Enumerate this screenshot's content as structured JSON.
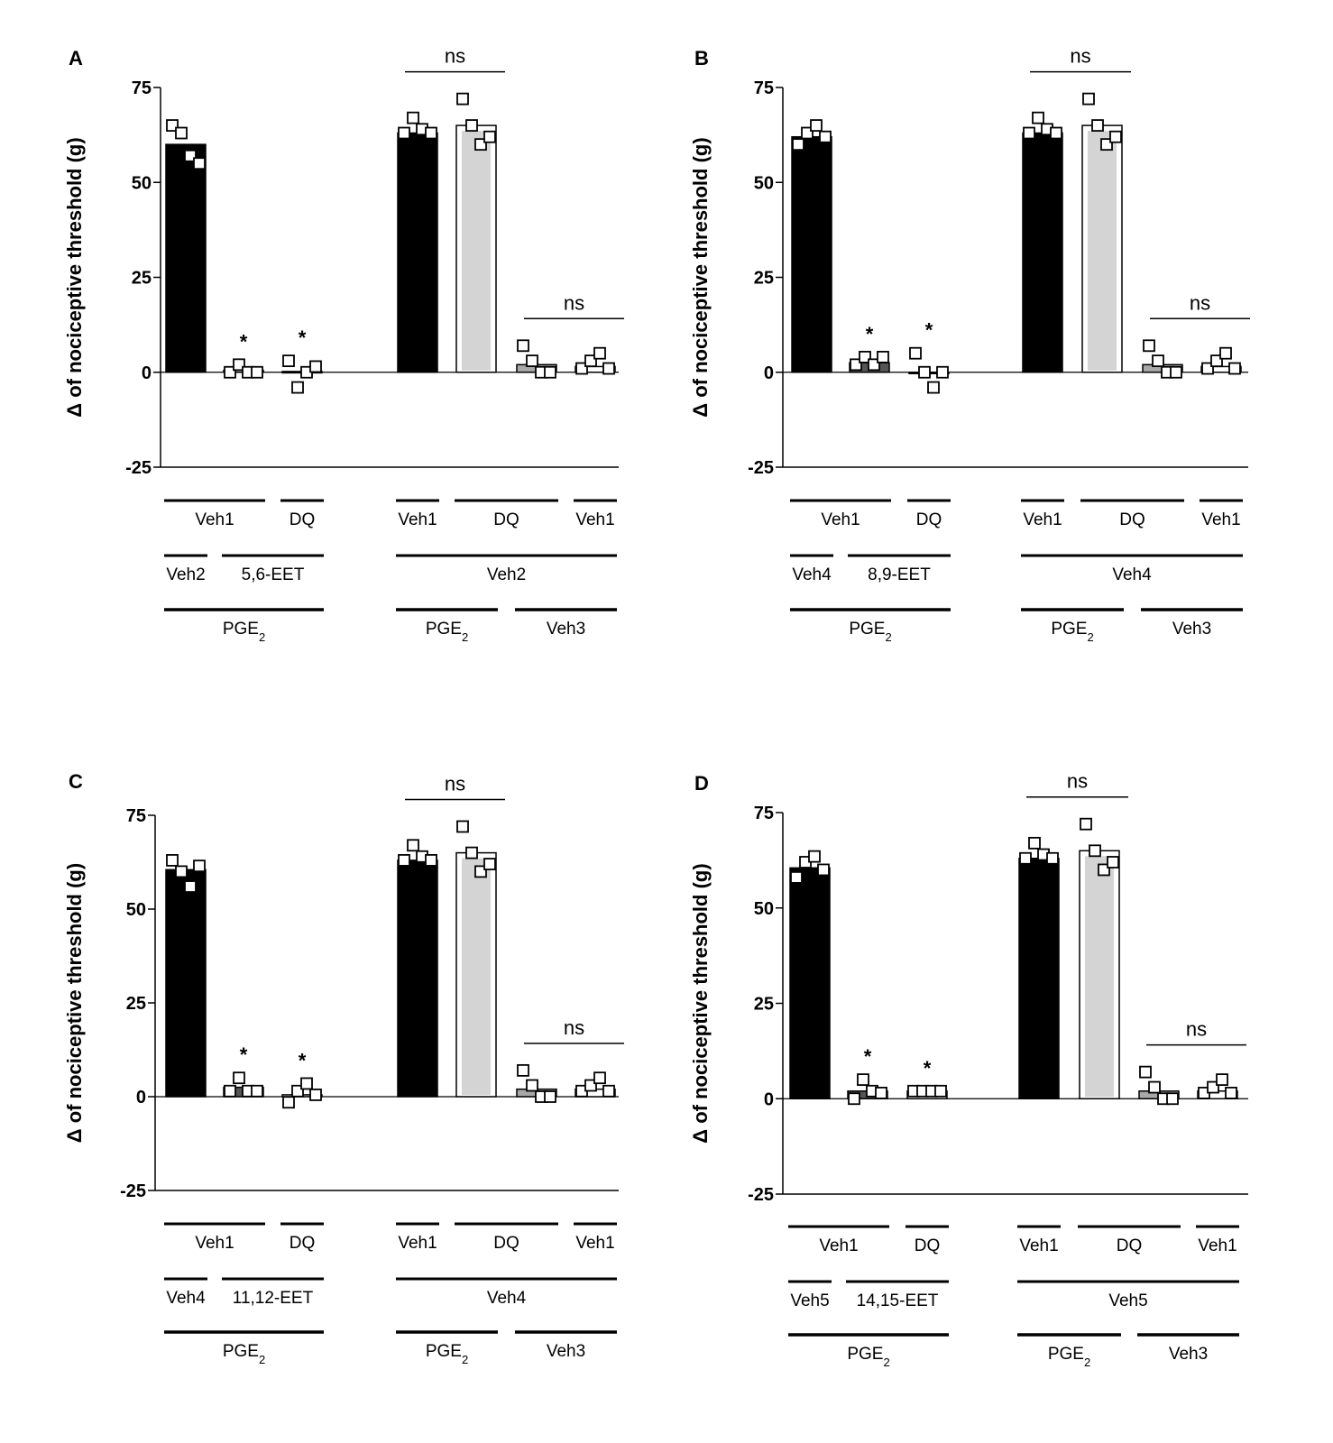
{
  "figure": {
    "ylabel": "Δ of nociceptive threshold (g)",
    "colors": {
      "black": "#000000",
      "light_gray": "#d4d4d4",
      "mid_gray": "#a8a8a8",
      "dark_gray": "#555555",
      "white": "#ffffff"
    }
  },
  "chart_data": [
    {
      "panel": "A",
      "type": "bar",
      "title": "",
      "ylabel": "Δ of nociceptive threshold (g)",
      "ylim": [
        -25,
        75
      ],
      "yticks": [
        75,
        50,
        25,
        0,
        -25
      ],
      "categories": [
        "PGE2+Veh2+Veh1",
        "PGE2+5,6-EET+Veh1",
        "PGE2+5,6-EET+DQ",
        "PGE2+Veh2+Veh1",
        "PGE2+Veh2+DQ",
        "Veh3+Veh2+DQ",
        "Veh3+Veh2+Veh1"
      ],
      "values": [
        60,
        0.5,
        0.2,
        63,
        65,
        2,
        1.5
      ],
      "fills": [
        "black",
        "white",
        "white",
        "black",
        "light_gray",
        "mid_gray",
        "white"
      ],
      "points": [
        [
          65,
          63,
          57,
          55
        ],
        [
          0,
          2,
          0,
          0
        ],
        [
          3,
          -4,
          0,
          1.5
        ],
        [
          63,
          67,
          64,
          63
        ],
        [
          72,
          65,
          60,
          62
        ],
        [
          7,
          3,
          0,
          0
        ],
        [
          1,
          3,
          5,
          1
        ]
      ],
      "annotations": {
        "stars": [
          1,
          2
        ],
        "ns_brackets": [
          {
            "from": 3,
            "to": 4,
            "label": "ns"
          },
          {
            "from": 5,
            "to": 6,
            "label": "ns"
          }
        ]
      },
      "group_rows": [
        [
          {
            "label": "Veh1",
            "from": 0,
            "to": 1
          },
          {
            "label": "DQ",
            "from": 2,
            "to": 2
          },
          {
            "label": "Veh1",
            "from": 3,
            "to": 3
          },
          {
            "label": "DQ",
            "from": 4,
            "to": 5
          },
          {
            "label": "Veh1",
            "from": 6,
            "to": 6
          }
        ],
        [
          {
            "label": "Veh2",
            "from": 0,
            "to": 0
          },
          {
            "label": "5,6-EET",
            "from": 1,
            "to": 2
          },
          {
            "label": "Veh2",
            "from": 3,
            "to": 6
          }
        ],
        [
          {
            "label": "PGE",
            "sub": "2",
            "from": 0,
            "to": 2
          },
          {
            "label": "PGE",
            "sub": "2",
            "from": 3,
            "to": 4
          },
          {
            "label": "Veh3",
            "from": 5,
            "to": 6
          }
        ]
      ]
    },
    {
      "panel": "B",
      "type": "bar",
      "title": "",
      "ylabel": "Δ of nociceptive threshold (g)",
      "ylim": [
        -25,
        75
      ],
      "yticks": [
        75,
        50,
        25,
        0,
        -25
      ],
      "categories": [
        "PGE2+Veh4+Veh1",
        "PGE2+8,9-EET+Veh1",
        "PGE2+8,9-EET+DQ",
        "PGE2+Veh4+Veh1",
        "PGE2+Veh4+DQ",
        "Veh3+Veh4+DQ",
        "Veh3+Veh4+Veh1"
      ],
      "values": [
        62,
        2.5,
        0,
        63,
        65,
        2,
        1.5
      ],
      "fills": [
        "black",
        "dark_gray",
        "white",
        "black",
        "light_gray",
        "mid_gray",
        "white"
      ],
      "points": [
        [
          60,
          63,
          65,
          62
        ],
        [
          2,
          4,
          2,
          4
        ],
        [
          5,
          0,
          -4,
          0
        ],
        [
          63,
          67,
          64,
          63
        ],
        [
          72,
          65,
          60,
          62
        ],
        [
          7,
          3,
          0,
          0
        ],
        [
          1,
          3,
          5,
          1
        ]
      ],
      "annotations": {
        "stars": [
          1,
          2
        ],
        "ns_brackets": [
          {
            "from": 3,
            "to": 4,
            "label": "ns"
          },
          {
            "from": 5,
            "to": 6,
            "label": "ns"
          }
        ]
      },
      "group_rows": [
        [
          {
            "label": "Veh1",
            "from": 0,
            "to": 1
          },
          {
            "label": "DQ",
            "from": 2,
            "to": 2
          },
          {
            "label": "Veh1",
            "from": 3,
            "to": 3
          },
          {
            "label": "DQ",
            "from": 4,
            "to": 5
          },
          {
            "label": "Veh1",
            "from": 6,
            "to": 6
          }
        ],
        [
          {
            "label": "Veh4",
            "from": 0,
            "to": 0
          },
          {
            "label": "8,9-EET",
            "from": 1,
            "to": 2
          },
          {
            "label": "Veh4",
            "from": 3,
            "to": 6
          }
        ],
        [
          {
            "label": "PGE",
            "sub": "2",
            "from": 0,
            "to": 2
          },
          {
            "label": "PGE",
            "sub": "2",
            "from": 3,
            "to": 4
          },
          {
            "label": "Veh3",
            "from": 5,
            "to": 6
          }
        ]
      ]
    },
    {
      "panel": "C",
      "type": "bar",
      "title": "",
      "ylabel": "Δ of nociceptive threshold (g)",
      "ylim": [
        -25,
        75
      ],
      "yticks": [
        75,
        50,
        25,
        0,
        -25
      ],
      "categories": [
        "PGE2+Veh4+Veh1",
        "PGE2+11,12-EET+Veh1",
        "PGE2+11,12-EET+DQ",
        "PGE2+Veh4+Veh1",
        "PGE2+Veh4+DQ",
        "Veh3+Veh4+DQ",
        "Veh3+Veh4+Veh1"
      ],
      "values": [
        60.5,
        2.5,
        0.5,
        63,
        65,
        2,
        2
      ],
      "fills": [
        "black",
        "dark_gray",
        "white",
        "black",
        "light_gray",
        "mid_gray",
        "white"
      ],
      "points": [
        [
          63,
          60,
          56,
          61.5
        ],
        [
          1.5,
          5,
          1.5,
          1.5
        ],
        [
          -1.5,
          1.5,
          3.5,
          0.5
        ],
        [
          63,
          67,
          64,
          63
        ],
        [
          72,
          65,
          60,
          62
        ],
        [
          7,
          3,
          0,
          0
        ],
        [
          1.5,
          3,
          5,
          1.5
        ]
      ],
      "annotations": {
        "stars": [
          1,
          2
        ],
        "ns_brackets": [
          {
            "from": 3,
            "to": 4,
            "label": "ns"
          },
          {
            "from": 5,
            "to": 6,
            "label": "ns"
          }
        ]
      },
      "group_rows": [
        [
          {
            "label": "Veh1",
            "from": 0,
            "to": 1
          },
          {
            "label": "DQ",
            "from": 2,
            "to": 2
          },
          {
            "label": "Veh1",
            "from": 3,
            "to": 3
          },
          {
            "label": "DQ",
            "from": 4,
            "to": 5
          },
          {
            "label": "Veh1",
            "from": 6,
            "to": 6
          }
        ],
        [
          {
            "label": "Veh4",
            "from": 0,
            "to": 0
          },
          {
            "label": "11,12-EET",
            "from": 1,
            "to": 2
          },
          {
            "label": "Veh4",
            "from": 3,
            "to": 6
          }
        ],
        [
          {
            "label": "PGE",
            "sub": "2",
            "from": 0,
            "to": 2
          },
          {
            "label": "PGE",
            "sub": "2",
            "from": 3,
            "to": 4
          },
          {
            "label": "Veh3",
            "from": 5,
            "to": 6
          }
        ]
      ]
    },
    {
      "panel": "D",
      "type": "bar",
      "title": "",
      "ylabel": "Δ of nociceptive threshold (g)",
      "ylim": [
        -25,
        75
      ],
      "yticks": [
        75,
        50,
        25,
        0,
        -25
      ],
      "categories": [
        "PGE2+Veh5+Veh1",
        "PGE2+14,15-EET+Veh1",
        "PGE2+14,15-EET+DQ",
        "PGE2+Veh5+Veh1",
        "PGE2+Veh5+DQ",
        "Veh3+Veh5+DQ",
        "Veh3+Veh5+Veh1"
      ],
      "values": [
        60.5,
        2,
        2,
        63,
        65,
        2,
        2
      ],
      "fills": [
        "black",
        "dark_gray",
        "white",
        "black",
        "light_gray",
        "mid_gray",
        "white"
      ],
      "points": [
        [
          58,
          62,
          63.5,
          60
        ],
        [
          0,
          5,
          2,
          1.5
        ],
        [
          2,
          2,
          2,
          2
        ],
        [
          63,
          67,
          64,
          63
        ],
        [
          72,
          65,
          60,
          62
        ],
        [
          7,
          3,
          0,
          0
        ],
        [
          1.5,
          3,
          5,
          1.5
        ]
      ],
      "annotations": {
        "stars": [
          1,
          2
        ],
        "ns_brackets": [
          {
            "from": 3,
            "to": 4,
            "label": "ns"
          },
          {
            "from": 5,
            "to": 6,
            "label": "ns"
          }
        ]
      },
      "group_rows": [
        [
          {
            "label": "Veh1",
            "from": 0,
            "to": 1
          },
          {
            "label": "DQ",
            "from": 2,
            "to": 2
          },
          {
            "label": "Veh1",
            "from": 3,
            "to": 3
          },
          {
            "label": "DQ",
            "from": 4,
            "to": 5
          },
          {
            "label": "Veh1",
            "from": 6,
            "to": 6
          }
        ],
        [
          {
            "label": "Veh5",
            "from": 0,
            "to": 0
          },
          {
            "label": "14,15-EET",
            "from": 1,
            "to": 2
          },
          {
            "label": "Veh5",
            "from": 3,
            "to": 6
          }
        ],
        [
          {
            "label": "PGE",
            "sub": "2",
            "from": 0,
            "to": 2
          },
          {
            "label": "PGE",
            "sub": "2",
            "from": 3,
            "to": 4
          },
          {
            "label": "Veh3",
            "from": 5,
            "to": 6
          }
        ]
      ]
    }
  ]
}
